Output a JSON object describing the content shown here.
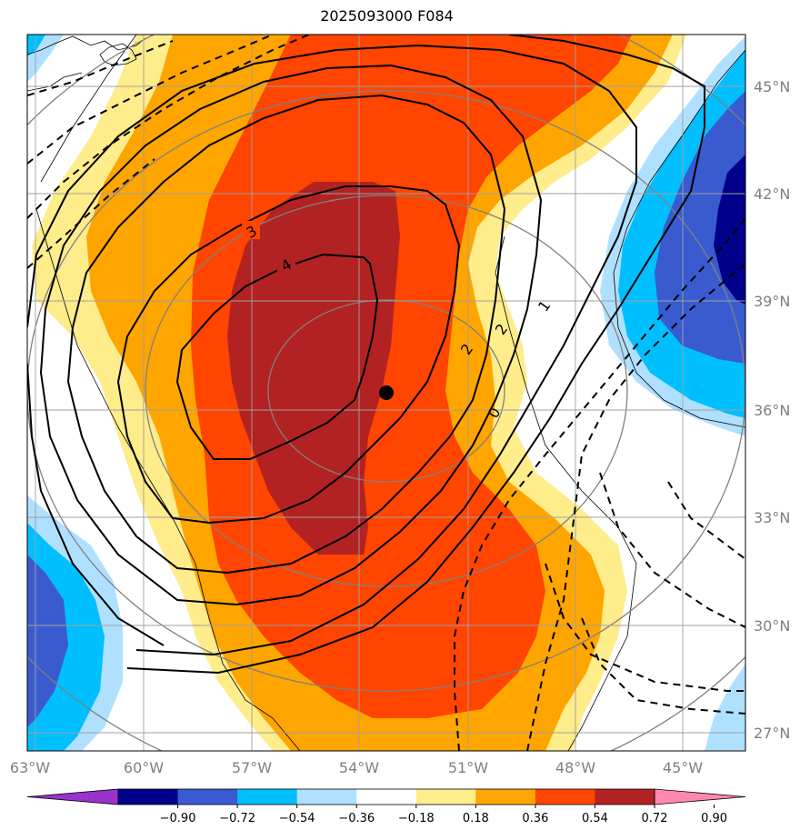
{
  "title": "2025093000 F084",
  "map": {
    "lat_ticks": [
      "45°N",
      "42°N",
      "39°N",
      "36°N",
      "33°N",
      "30°N",
      "27°N"
    ],
    "lon_ticks": [
      "63°W",
      "60°W",
      "57°W",
      "54°W",
      "51°W",
      "48°W",
      "45°W"
    ],
    "contour_labels": [
      "3",
      "4",
      "2",
      "2",
      "1",
      "0"
    ],
    "marker": "center-point"
  },
  "colorbar": {
    "labels": [
      "−0.90",
      "−0.72",
      "−0.54",
      "−0.36",
      "−0.18",
      "0.18",
      "0.36",
      "0.54",
      "0.72",
      "0.90"
    ],
    "colors": [
      "#9933cc",
      "#00008b",
      "#3a5bd0",
      "#00bfff",
      "#b0e0ff",
      "#ffffff",
      "#ffec8b",
      "#ffa500",
      "#ff4500",
      "#b22222",
      "#ff88b0"
    ]
  }
}
